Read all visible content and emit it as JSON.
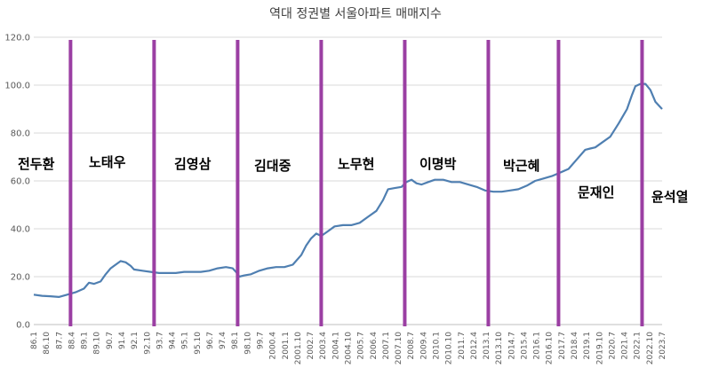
{
  "chart_data": {
    "type": "line",
    "title": "역대 정권별 서울아파트 매매지수",
    "xlabel": "",
    "ylabel": "",
    "ylim": [
      0,
      120
    ],
    "yticks": [
      "0.0",
      "20.0",
      "40.0",
      "60.0",
      "80.0",
      "100.0",
      "120.0"
    ],
    "grid": true,
    "xticks": [
      "86.1",
      "86.10",
      "87.7",
      "88.4",
      "89.1",
      "89.10",
      "90.7",
      "91.4",
      "92.1",
      "92.10",
      "93.7",
      "94.4",
      "95.1",
      "95.10",
      "96.7",
      "97.4",
      "98.1",
      "98.10",
      "99.7",
      "2000.4",
      "2001.1",
      "2001.10",
      "2002.7",
      "2003.4",
      "2004.1",
      "2004.10",
      "2005.7",
      "2006.4",
      "2007.1",
      "2007.10",
      "2008.7",
      "2009.4",
      "2010.1",
      "2010.10",
      "2011.7",
      "2012.4",
      "2013.1",
      "2013.10",
      "2014.7",
      "2015.4",
      "2016.1",
      "2016.10",
      "2017.7",
      "2018.4",
      "2019.1",
      "2019.10",
      "2020.7",
      "2021.4",
      "2022.1",
      "2022.10",
      "2023.7"
    ],
    "series": [
      {
        "name": "서울아파트 매매지수",
        "color": "#4f7fb1",
        "x": [
          1986.0,
          1986.5,
          1987.0,
          1987.5,
          1988.0,
          1988.5,
          1989.0,
          1989.3,
          1989.6,
          1990.0,
          1990.3,
          1990.6,
          1990.9,
          1991.2,
          1991.5,
          1991.8,
          1992.0,
          1992.5,
          1993.0,
          1993.5,
          1994.0,
          1994.5,
          1995.0,
          1996.0,
          1996.5,
          1997.0,
          1997.5,
          1997.9,
          1998.1,
          1998.3,
          1998.6,
          1999.0,
          1999.5,
          2000.0,
          2000.5,
          2001.0,
          2001.5,
          2002.0,
          2002.3,
          2002.6,
          2002.9,
          2003.2,
          2003.5,
          2004.0,
          2004.5,
          2005.0,
          2005.5,
          2006.0,
          2006.5,
          2006.9,
          2007.2,
          2007.6,
          2008.0,
          2008.3,
          2008.6,
          2008.9,
          2009.2,
          2009.6,
          2010.0,
          2010.5,
          2011.0,
          2011.5,
          2012.0,
          2012.5,
          2013.0,
          2013.5,
          2014.0,
          2014.5,
          2015.0,
          2015.5,
          2016.0,
          2016.5,
          2017.0,
          2017.5,
          2018.0,
          2018.5,
          2019.0,
          2019.3,
          2019.6,
          2020.0,
          2020.5,
          2021.0,
          2021.5,
          2021.8,
          2022.0,
          2022.3,
          2022.6,
          2022.9,
          2023.2,
          2023.6
        ],
        "values": [
          12.5,
          12.0,
          11.8,
          11.5,
          12.5,
          13.5,
          15.0,
          17.5,
          17.0,
          18.0,
          21.0,
          23.5,
          25.0,
          26.5,
          26.0,
          24.5,
          23.0,
          22.5,
          22.0,
          21.5,
          21.5,
          21.5,
          22.0,
          22.0,
          22.5,
          23.5,
          24.0,
          23.5,
          22.0,
          20.0,
          20.5,
          21.0,
          22.5,
          23.5,
          24.0,
          24.0,
          25.0,
          29.0,
          33.0,
          36.0,
          38.0,
          37.0,
          38.5,
          41.0,
          41.5,
          41.5,
          42.5,
          45.0,
          47.5,
          52.0,
          56.5,
          57.0,
          57.5,
          59.5,
          60.5,
          59.0,
          58.5,
          59.5,
          60.5,
          60.5,
          59.5,
          59.5,
          58.5,
          57.5,
          56.0,
          55.5,
          55.5,
          56.0,
          56.5,
          58.0,
          60.0,
          61.0,
          62.0,
          63.5,
          65.0,
          69.0,
          73.0,
          73.5,
          74.0,
          76.0,
          78.5,
          84.0,
          90.0,
          96.0,
          99.5,
          100.5,
          100.5,
          98.0,
          93.0,
          90.0
        ]
      }
    ],
    "regimes": [
      {
        "name": "전두환",
        "start": 1986.0
      },
      {
        "name": "노태우",
        "start": 1988.2
      },
      {
        "name": "김영삼",
        "start": 1993.2
      },
      {
        "name": "김대중",
        "start": 1998.2
      },
      {
        "name": "노무현",
        "start": 2003.2
      },
      {
        "name": "이명박",
        "start": 2008.2
      },
      {
        "name": "박근혜",
        "start": 2013.2
      },
      {
        "name": "문재인",
        "start": 2017.4
      },
      {
        "name": "윤석열",
        "start": 2022.4
      }
    ]
  }
}
